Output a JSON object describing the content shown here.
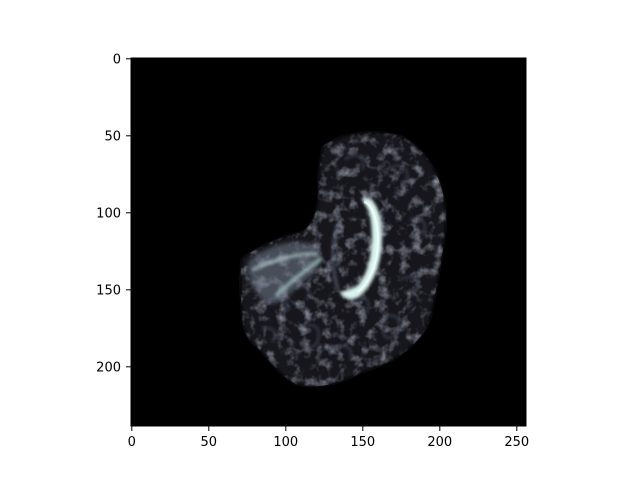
{
  "figure": {
    "background": "#ffffff",
    "image_background": "#000000",
    "tissue_palette": [
      "#0a0a12",
      "#2c2f3d",
      "#5b6275",
      "#9fb9bd",
      "#d9f3ee"
    ]
  },
  "chart_data": {
    "type": "heatmap",
    "title": "",
    "xlabel": "",
    "ylabel": "",
    "xlim": [
      0,
      256
    ],
    "ylim": [
      240,
      0
    ],
    "x_ticks": [
      0,
      50,
      100,
      150,
      200,
      250
    ],
    "y_ticks": [
      0,
      50,
      100,
      150,
      200
    ],
    "x_tick_labels": [
      "0",
      "50",
      "100",
      "150",
      "200",
      "250"
    ],
    "y_tick_labels": [
      "0",
      "50",
      "100",
      "150",
      "200"
    ],
    "colormap": "bone",
    "content": "MRI brain slice (sagittal view) with bright curved ventricle structure"
  }
}
